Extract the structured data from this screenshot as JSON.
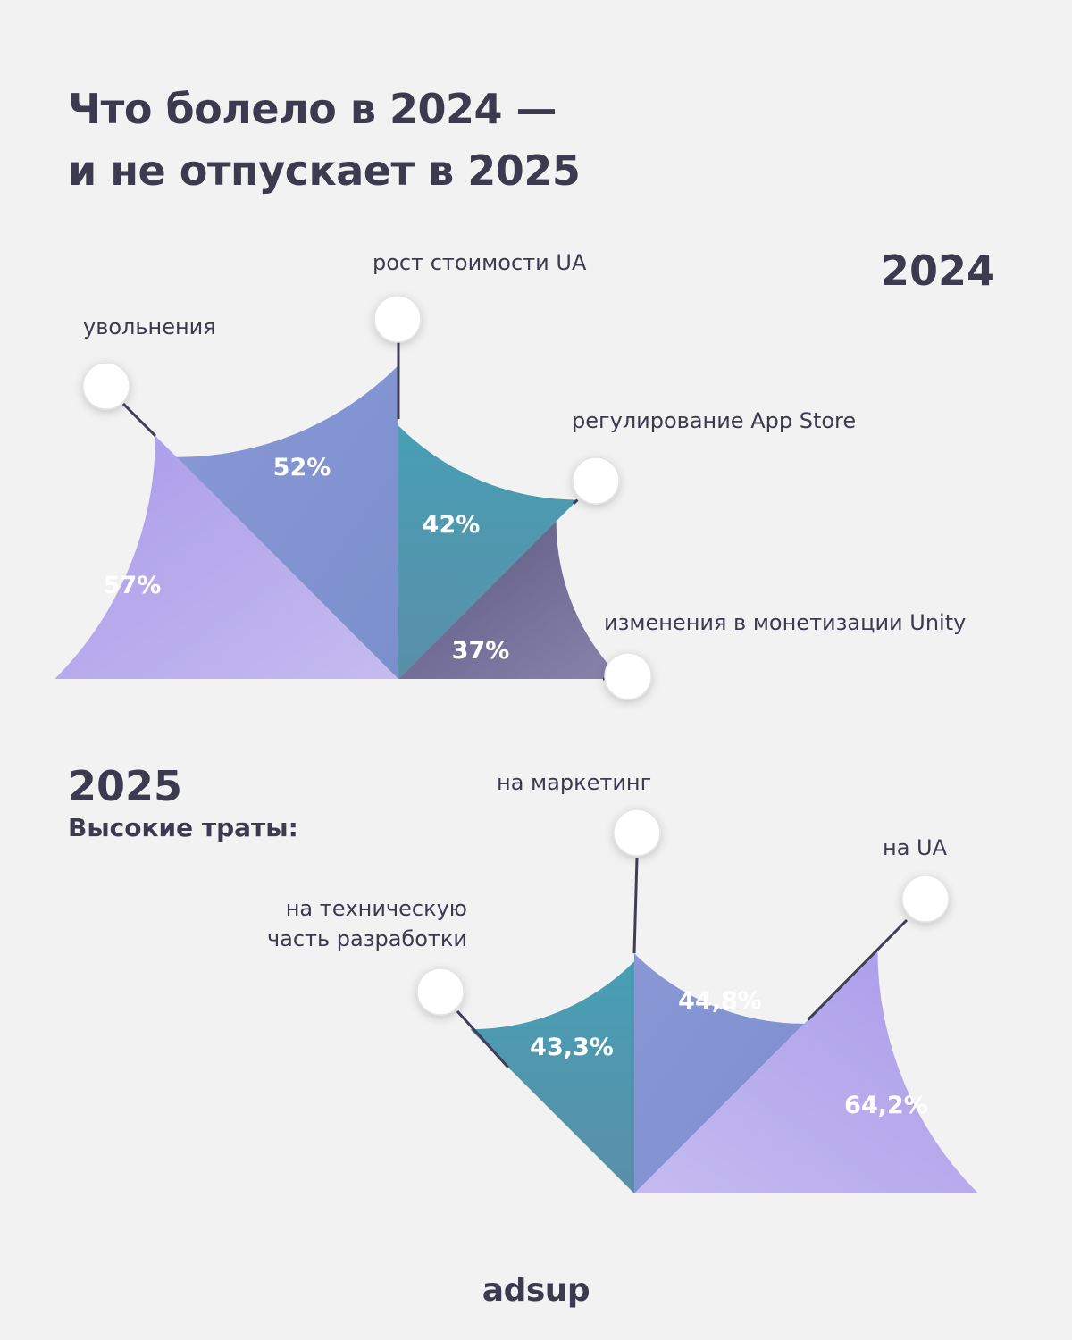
{
  "title": {
    "line1": "Что болело в 2024 —",
    "line2": "и не отпускает в 2025"
  },
  "logo": "adsup",
  "chart_data": [
    {
      "type": "pie",
      "year": "2024",
      "series": [
        {
          "label": "увольнения",
          "value": 57,
          "value_label": "57%",
          "color": "#b2a6ea"
        },
        {
          "label": "рост стоимости UA",
          "value": 52,
          "value_label": "52%",
          "color": "#7f92cf"
        },
        {
          "label": "регулирование App Store",
          "value": 42,
          "value_label": "42%",
          "color": "#4a9fb3"
        },
        {
          "label": "изменения в монетизации Unity",
          "value": 37,
          "value_label": "37%",
          "color": "#6c6891"
        }
      ]
    },
    {
      "type": "pie",
      "year": "2025",
      "subtitle": "Высокие траты:",
      "series": [
        {
          "label": "на техническую часть разработки",
          "label_lines": [
            "на техническую",
            "часть разработки"
          ],
          "value": 43.3,
          "value_label": "43,3%",
          "color": "#4a9fb3"
        },
        {
          "label": "на маркетинг",
          "value": 44.8,
          "value_label": "44,8%",
          "color": "#7f92cf"
        },
        {
          "label": "на UA",
          "value": 64.2,
          "value_label": "64,2%",
          "color": "#b2a6ea"
        }
      ]
    }
  ]
}
